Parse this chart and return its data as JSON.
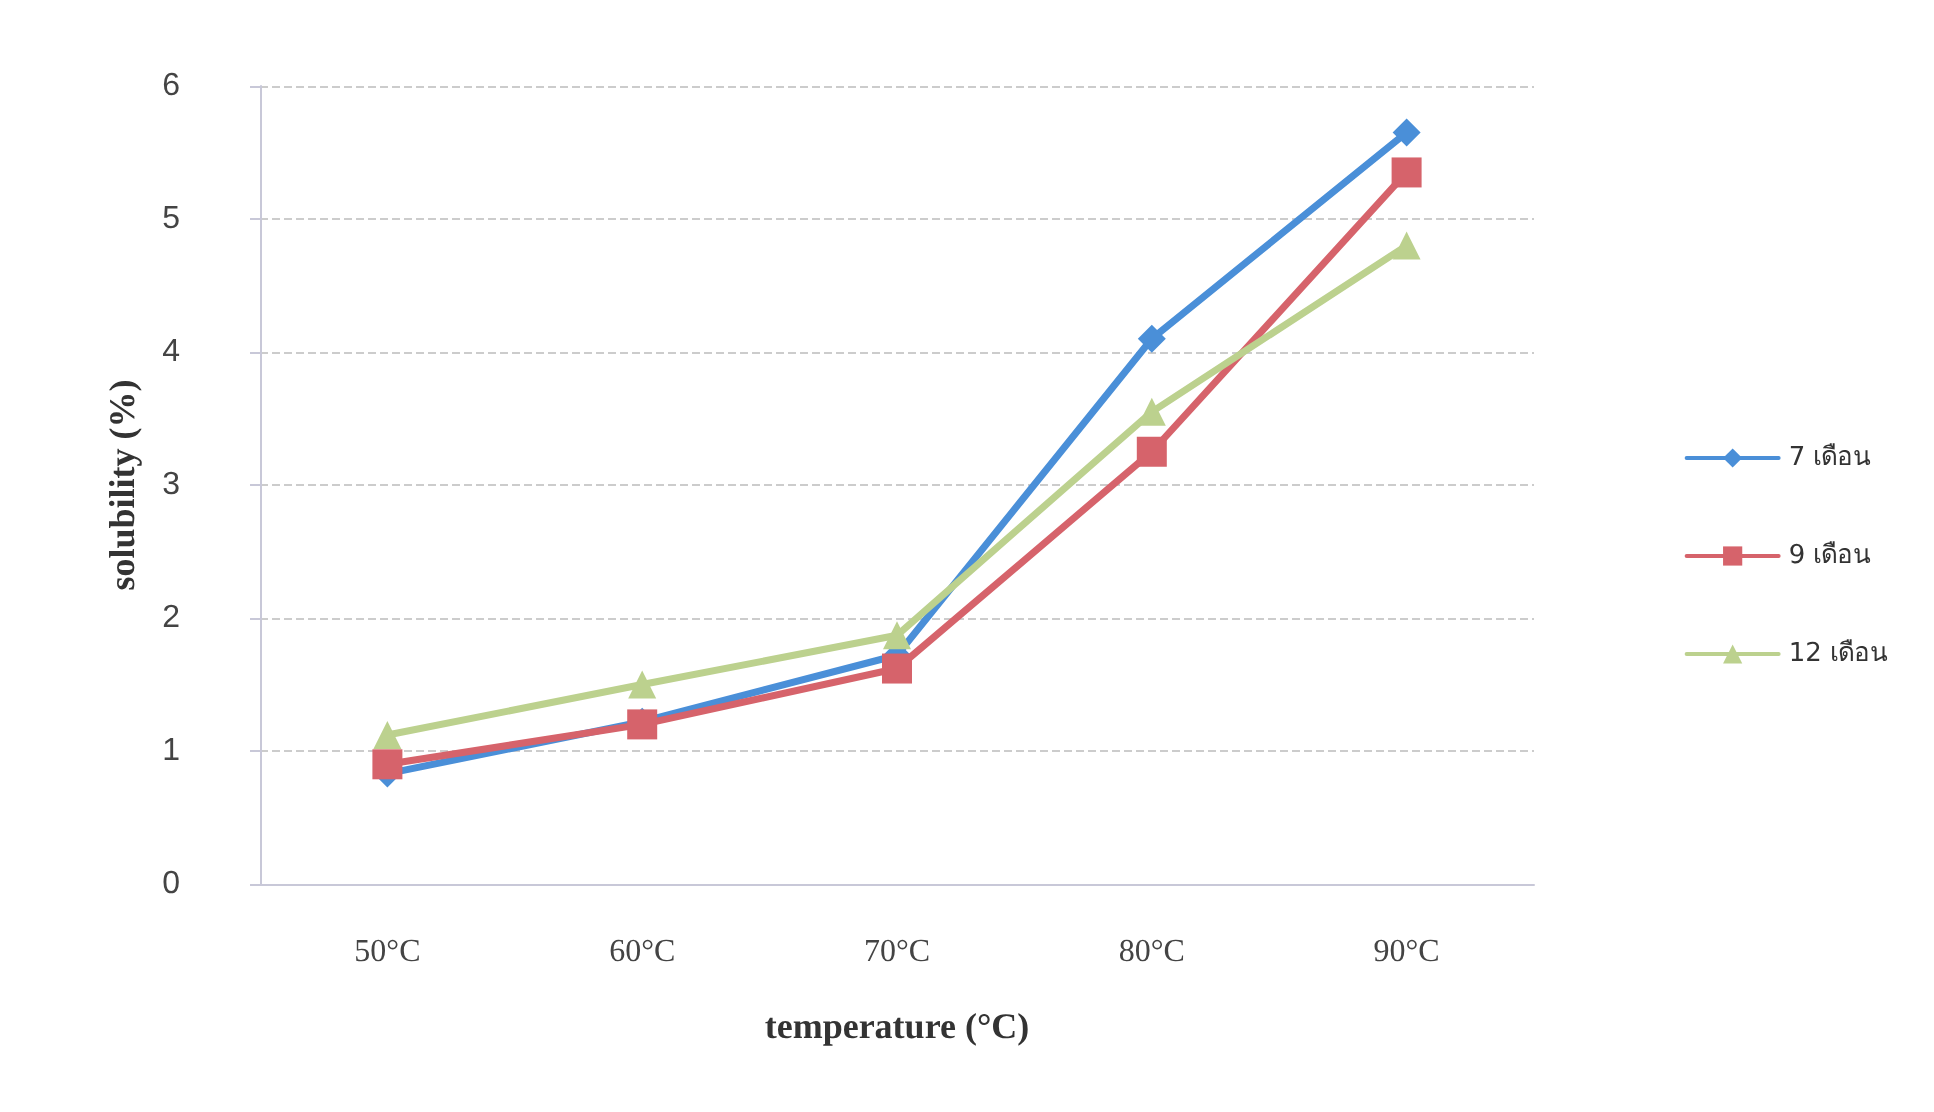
{
  "chart_data": {
    "type": "line",
    "xlabel": "temperature (°C)",
    "ylabel": "solubility (%)",
    "categories": [
      "50°C",
      "60°C",
      "70°C",
      "80°C",
      "90°C"
    ],
    "series": [
      {
        "name": "7 เดือน",
        "color": "#4a8fd8",
        "values": [
          0.83,
          1.22,
          1.72,
          4.1,
          5.65
        ],
        "marker": "diamond"
      },
      {
        "name": "9 เดือน",
        "color": "#d6636b",
        "values": [
          0.9,
          1.2,
          1.62,
          3.25,
          5.35
        ],
        "marker": "square"
      },
      {
        "name": "12 เดือน",
        "color": "#bcd18e",
        "values": [
          1.12,
          1.5,
          1.87,
          3.55,
          4.8
        ],
        "marker": "triangle"
      }
    ],
    "ylim": [
      0,
      6
    ],
    "yticks": [
      0,
      1,
      2,
      3,
      4,
      5,
      6
    ],
    "grid": "y",
    "legend": "right",
    "line_style": "solid"
  }
}
